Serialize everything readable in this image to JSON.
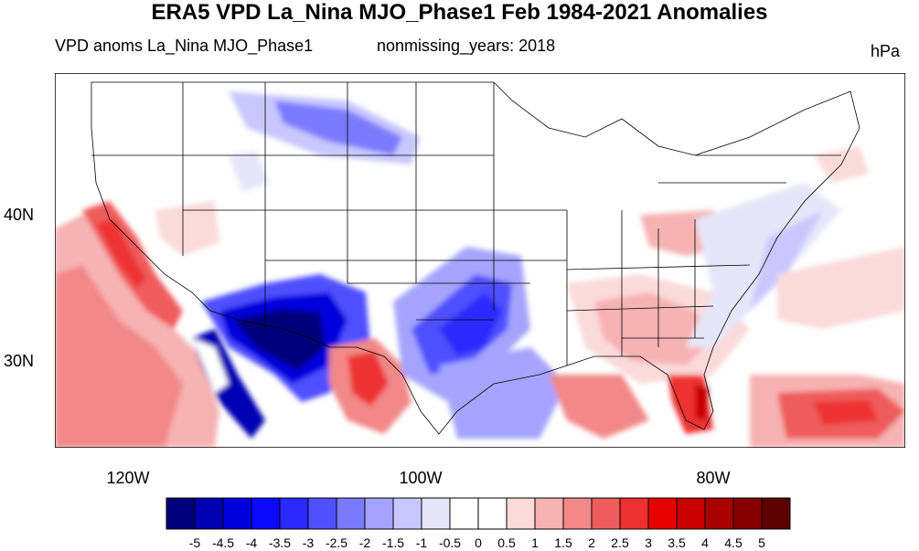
{
  "figure": {
    "title": "ERA5 VPD La_Nina MJO_Phase1 Feb 1984-2021 Anomalies",
    "left_subtitle": "VPD anoms La_Nina MJO_Phase1",
    "center_subtitle": "nonmissing_years: 2018",
    "units": "hPa"
  },
  "axes": {
    "lat_labels": [
      "40N",
      "30N"
    ],
    "lon_labels": [
      "120W",
      "100W",
      "80W"
    ]
  },
  "colorbar": {
    "levels": [
      "-5",
      "-4.5",
      "-4",
      "-3.5",
      "-3",
      "-2.5",
      "-2",
      "-1.5",
      "-1",
      "-0.5",
      "0",
      "0.5",
      "1",
      "1.5",
      "2",
      "2.5",
      "3",
      "3.5",
      "4",
      "4.5",
      "5"
    ],
    "colors": [
      "#00007a",
      "#0000b4",
      "#0000dd",
      "#0a0aff",
      "#2a2aff",
      "#5050ff",
      "#7a7aff",
      "#a4a4ff",
      "#c8c8ff",
      "#e6e6fb",
      "#ffffff",
      "#ffffff",
      "#fbdada",
      "#f7b2b2",
      "#f28888",
      "#ef5c5c",
      "#ee3030",
      "#e60000",
      "#c80000",
      "#a80000",
      "#850000",
      "#5c0000"
    ]
  }
}
